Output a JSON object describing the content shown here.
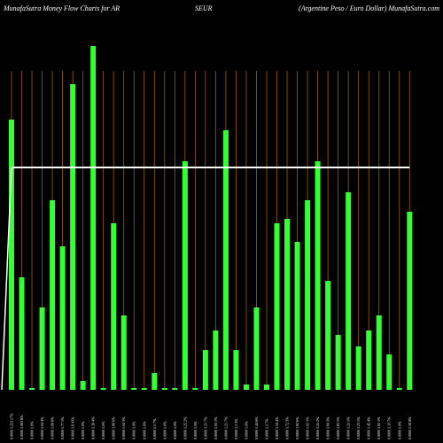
{
  "chart_data": {
    "type": "bar",
    "title": "MunafaSutra  Money Flow  Charts for AR",
    "title_mid": "SEUR",
    "title_right": "(Argentine   Peso   / Euro  Dollar) MunafaSutra.com",
    "categories": [
      "0.0000 1.223 17%",
      "0.0000 1.063 8%",
      "0.0000 1.0%",
      "0.0000 1.04 4%",
      "0.0000 1.09 8%",
      "0.0000 1.77 1%",
      "0.0000 1.6 43%",
      "0.0000 1.0%",
      "0.0000 1.39 4%",
      "0.0000 1.0%",
      "0.0000 1.06 6%",
      "0.0000 1.04 3%",
      "0.0000 1.0%",
      "0.0000 1.0%",
      "0.0000 1.5 7%",
      "0.0000 1.0%",
      "0.0000 1.0%",
      "0.0000 1.25 2%",
      "0.0000 1.0%",
      "0.0000 1.21 7%",
      "0.0000 1.93 1%",
      "0.0000 1.21 7%",
      "0.0000 1.2 3%",
      "0.0000 1.0%",
      "0.0000 1.44 6%",
      "0.0000 1.2 7%",
      "0.0000 1.54 4%",
      "0.0000 1.72 3%",
      "0.0000 1.92 6%",
      "0.0000 1.05 3%",
      "0.0000 1.25 2%",
      "0.0000 1.60 3%",
      "0.0000 1.83 1%",
      "0.0000 1.23 1%",
      "0.0000 1.23 1%",
      "0.0000 1.45 4%",
      "0.0000 1.62 1%",
      "0.0000 1.33 7%",
      "0.0000 1.0%",
      "0.0000 1.59 8%"
    ],
    "values": [
      305,
      127,
      2,
      93,
      214,
      162,
      345,
      10,
      388,
      2,
      188,
      84,
      2,
      2,
      19,
      2,
      2,
      258,
      2,
      45,
      67,
      293,
      45,
      6,
      93,
      6,
      188,
      193,
      167,
      214,
      258,
      123,
      62,
      223,
      49,
      67,
      84,
      40,
      2,
      201
    ],
    "average": 251,
    "color": "#33ff33",
    "grid_color": "#a0600a",
    "average_color": "#ffffff",
    "ylim": [
      0,
      390
    ]
  }
}
